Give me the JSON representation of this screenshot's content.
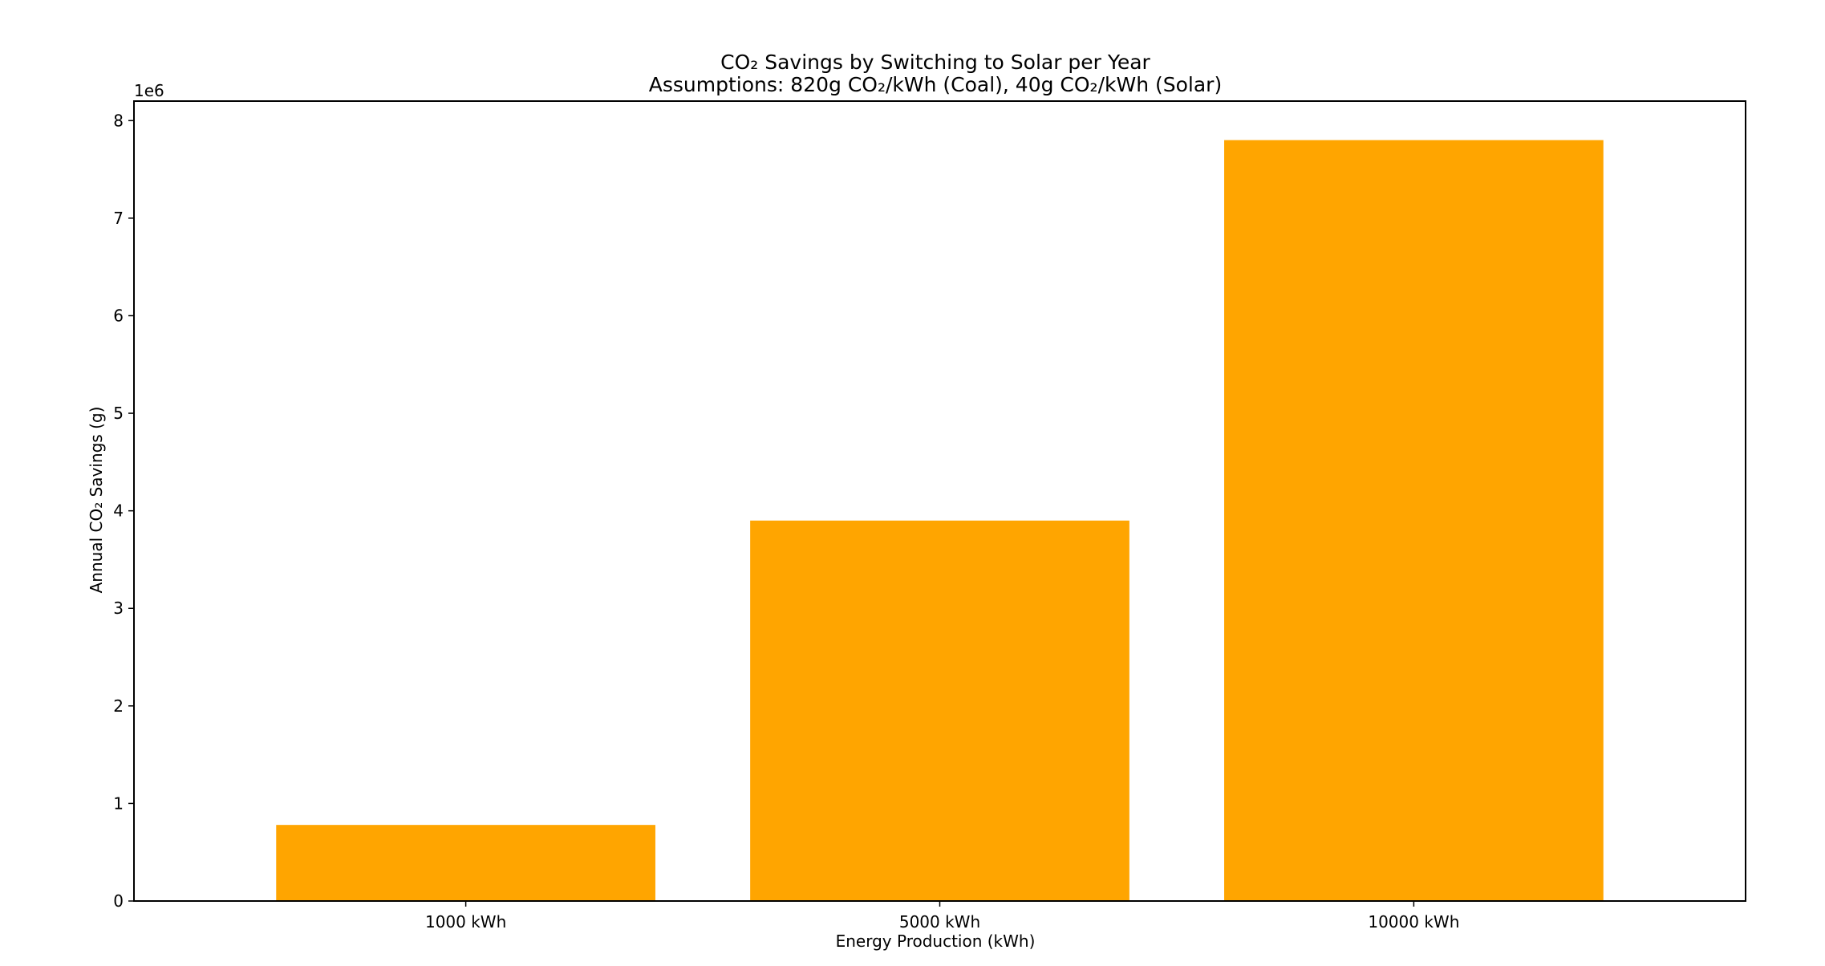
{
  "chart_data": {
    "type": "bar",
    "title": "CO₂ Savings by Switching to Solar per Year",
    "subtitle": "Assumptions: 820g CO₂/kWh (Coal), 40g CO₂/kWh (Solar)",
    "xlabel": "Energy Production (kWh)",
    "ylabel": "Annual CO₂ Savings (g)",
    "y_scale_label": "1e6",
    "categories": [
      "1000 kWh",
      "5000 kWh",
      "10000 kWh"
    ],
    "values": [
      780000,
      3900000,
      7800000
    ],
    "ylim": [
      0,
      8200000
    ],
    "yticks": [
      0,
      1000000,
      2000000,
      3000000,
      4000000,
      5000000,
      6000000,
      7000000,
      8000000
    ],
    "ytick_labels": [
      "0",
      "1",
      "2",
      "3",
      "4",
      "5",
      "6",
      "7",
      "8"
    ],
    "bar_color": "#ffa500",
    "grid": false,
    "legend": "none"
  }
}
